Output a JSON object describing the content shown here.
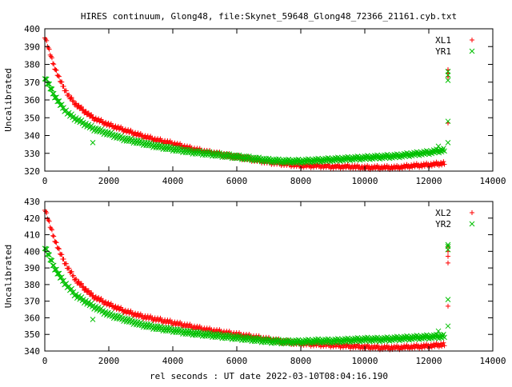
{
  "title": "HIRES continuum, Glong48, file:Skynet_59648_Glong48_72366_21161.cyb.txt",
  "xlabel": "rel seconds : UT date 2022-03-10T08:04:16.190",
  "colors": {
    "red": "#ff0000",
    "green": "#00c000"
  },
  "chart_data": [
    {
      "type": "scatter",
      "ylabel": "Uncalibrated",
      "xlim": [
        0,
        14000
      ],
      "ylim": [
        320,
        400
      ],
      "xticks": [
        0,
        2000,
        4000,
        6000,
        8000,
        10000,
        12000,
        14000
      ],
      "yticks": [
        320,
        330,
        340,
        350,
        360,
        370,
        380,
        390,
        400
      ],
      "legend_position": "top-right",
      "series": [
        {
          "name": "XL1",
          "marker": "plus",
          "color": "#ff0000",
          "x": [
            0,
            250,
            500,
            750,
            1000,
            1500,
            2000,
            2500,
            3000,
            3500,
            4000,
            4500,
            5000,
            5500,
            6000,
            6500,
            7000,
            7500,
            8000,
            8500,
            9000,
            9500,
            10000,
            10500,
            11000,
            11500,
            12000,
            12500
          ],
          "y": [
            396,
            381,
            370,
            362,
            357,
            350,
            346,
            343,
            340,
            337.5,
            335.5,
            333,
            331,
            329.5,
            328,
            326.5,
            325,
            324,
            323,
            323,
            322.5,
            322.5,
            322,
            322,
            322,
            323,
            323.5,
            324.5
          ],
          "outliers_x": [
            12600,
            12600,
            12600,
            12600
          ],
          "outliers_y": [
            377,
            375,
            373,
            347
          ]
        },
        {
          "name": "YR1",
          "marker": "cross",
          "color": "#00c000",
          "x": [
            0,
            250,
            500,
            750,
            1000,
            1500,
            2000,
            2500,
            3000,
            3500,
            4000,
            4500,
            5000,
            5500,
            6000,
            6500,
            7000,
            7500,
            8000,
            8500,
            9000,
            9500,
            10000,
            10500,
            11000,
            11500,
            12000,
            12500
          ],
          "y": [
            373,
            364,
            357,
            352,
            349,
            344,
            341,
            338,
            336,
            334,
            332.5,
            331,
            330,
            329,
            328,
            327,
            326,
            325.5,
            325.5,
            326,
            326.5,
            327,
            327.5,
            328,
            328.5,
            329.5,
            330.5,
            332
          ],
          "outliers_x": [
            1500,
            12600,
            12600,
            12600,
            12600,
            12600,
            12300
          ],
          "outliers_y": [
            336,
            376,
            374,
            371,
            348,
            336,
            334
          ]
        }
      ]
    },
    {
      "type": "scatter",
      "ylabel": "Uncalibrated",
      "xlim": [
        0,
        14000
      ],
      "ylim": [
        340,
        430
      ],
      "xticks": [
        0,
        2000,
        4000,
        6000,
        8000,
        10000,
        12000,
        14000
      ],
      "yticks": [
        340,
        350,
        360,
        370,
        380,
        390,
        400,
        410,
        420,
        430
      ],
      "legend_position": "top-right",
      "series": [
        {
          "name": "XL2",
          "marker": "plus",
          "color": "#ff0000",
          "x": [
            0,
            250,
            500,
            750,
            1000,
            1500,
            2000,
            2500,
            3000,
            3500,
            4000,
            4500,
            5000,
            5500,
            6000,
            6500,
            7000,
            7500,
            8000,
            8500,
            9000,
            9500,
            10000,
            10500,
            11000,
            11500,
            12000,
            12500
          ],
          "y": [
            426,
            410,
            398,
            389,
            382,
            373,
            368,
            364,
            361,
            359,
            357,
            355,
            353,
            351.5,
            350,
            348.5,
            347,
            345.5,
            344.5,
            344,
            343.5,
            343,
            342.5,
            342,
            342,
            342.5,
            343,
            344
          ],
          "outliers_x": [
            12600,
            12600,
            12600,
            12600,
            12600
          ],
          "outliers_y": [
            403,
            400,
            397,
            393,
            367
          ]
        },
        {
          "name": "YR2",
          "marker": "cross",
          "color": "#00c000",
          "x": [
            0,
            250,
            500,
            750,
            1000,
            1500,
            2000,
            2500,
            3000,
            3500,
            4000,
            4500,
            5000,
            5500,
            6000,
            6500,
            7000,
            7500,
            8000,
            8500,
            9000,
            9500,
            10000,
            10500,
            11000,
            11500,
            12000,
            12500
          ],
          "y": [
            403,
            392,
            384,
            378,
            373,
            367,
            362,
            359,
            356,
            354,
            352.5,
            351,
            350,
            349,
            348,
            347,
            346,
            345.5,
            345.5,
            346,
            346,
            346.5,
            347,
            347,
            347.5,
            348,
            348.5,
            349
          ],
          "outliers_x": [
            1500,
            12600,
            12600,
            12600,
            12600,
            12600,
            12300
          ],
          "outliers_y": [
            359,
            404,
            403,
            401,
            371,
            355,
            352
          ]
        }
      ]
    }
  ]
}
